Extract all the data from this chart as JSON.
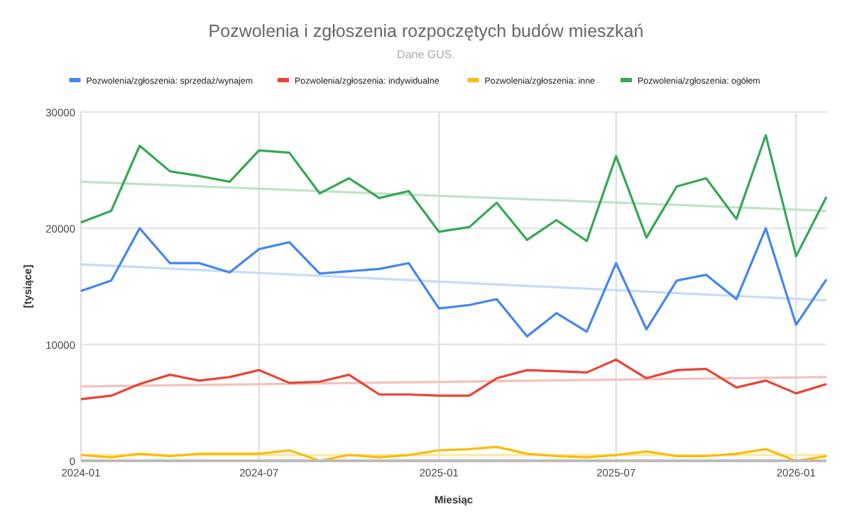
{
  "chart_data": {
    "type": "line",
    "title": "Pozwolenia i zgłoszenia rozpoczętych budów mieszkań",
    "subtitle": "Dane GUS.",
    "xlabel": "Miesiąc",
    "ylabel": "[tysiące]",
    "x": [
      "2024-01",
      "2024-02",
      "2024-03",
      "2024-04",
      "2024-05",
      "2024-06",
      "2024-07",
      "2024-08",
      "2024-09",
      "2024-10",
      "2024-11",
      "2024-12",
      "2025-01",
      "2025-02",
      "2025-03",
      "2025-04",
      "2025-05",
      "2025-06",
      "2025-07",
      "2025-08",
      "2025-09",
      "2025-10",
      "2025-11",
      "2025-12",
      "2026-01",
      "2026-02"
    ],
    "xlim": [
      "2024-01",
      "2026-02"
    ],
    "xticks": [
      {
        "value": "2024-01",
        "label": "2024-01"
      },
      {
        "value": "2024-07",
        "label": "2024-07"
      },
      {
        "value": "2025-01",
        "label": "2025-01"
      },
      {
        "value": "2025-07",
        "label": "2025-07"
      },
      {
        "value": "2026-01",
        "label": "2026-01"
      }
    ],
    "ylim": [
      0,
      30000
    ],
    "yticks": [
      0,
      10000,
      20000,
      30000
    ],
    "grid": true,
    "legend": "top",
    "line_style": "solid",
    "marker": "none",
    "series": [
      {
        "name": "Pozwolenia/zgłoszenia: sprzedaż/wynajem",
        "color": "#4285f4",
        "values": [
          14600,
          15500,
          20000,
          17000,
          17000,
          16200,
          18200,
          18800,
          16100,
          16300,
          16500,
          17000,
          13100,
          13400,
          13900,
          10700,
          12700,
          11100,
          17000,
          11300,
          15500,
          16000,
          13900,
          20000,
          11700,
          15600
        ]
      },
      {
        "name": "Pozwolenia/zgłoszenia: indywidualne",
        "color": "#ea4335",
        "values": [
          5300,
          5600,
          6600,
          7400,
          6900,
          7200,
          7800,
          6700,
          6800,
          7400,
          5700,
          5700,
          5600,
          5600,
          7100,
          7800,
          7700,
          7600,
          8700,
          7100,
          7800,
          7900,
          6300,
          6900,
          5800,
          6600
        ]
      },
      {
        "name": "Pozwolenia/zgłoszenia: inne",
        "color": "#fbbc04",
        "values": [
          500,
          300,
          600,
          400,
          600,
          600,
          600,
          900,
          0,
          500,
          300,
          500,
          900,
          1000,
          1200,
          600,
          400,
          300,
          500,
          800,
          400,
          400,
          600,
          1000,
          0,
          400
        ]
      },
      {
        "name": "Pozwolenia/zgłoszenia: ogółem",
        "color": "#34a853",
        "values": [
          20500,
          21500,
          27100,
          24900,
          24500,
          24000,
          26700,
          26500,
          23000,
          24300,
          22600,
          23200,
          19700,
          20100,
          22200,
          19000,
          20700,
          18900,
          26200,
          19200,
          23600,
          24300,
          20800,
          28000,
          17600,
          22700
        ]
      },
      {
        "type": "line",
        "color": "#c6dafc",
        "x": [
          "2024-01",
          "2026-02"
        ],
        "values": [
          16900,
          13800
        ]
      },
      {
        "type": "line",
        "color": "#f6c0bb",
        "x": [
          "2024-01",
          "2026-02"
        ],
        "values": [
          6400,
          7200
        ]
      },
      {
        "type": "line",
        "color": "#fde8a6",
        "x": [
          "2024-01",
          "2026-02"
        ],
        "values": [
          500,
          500
        ]
      },
      {
        "type": "line",
        "color": "#bfe3c8",
        "x": [
          "2024-01",
          "2026-02"
        ],
        "values": [
          24000,
          21500
        ]
      }
    ]
  }
}
